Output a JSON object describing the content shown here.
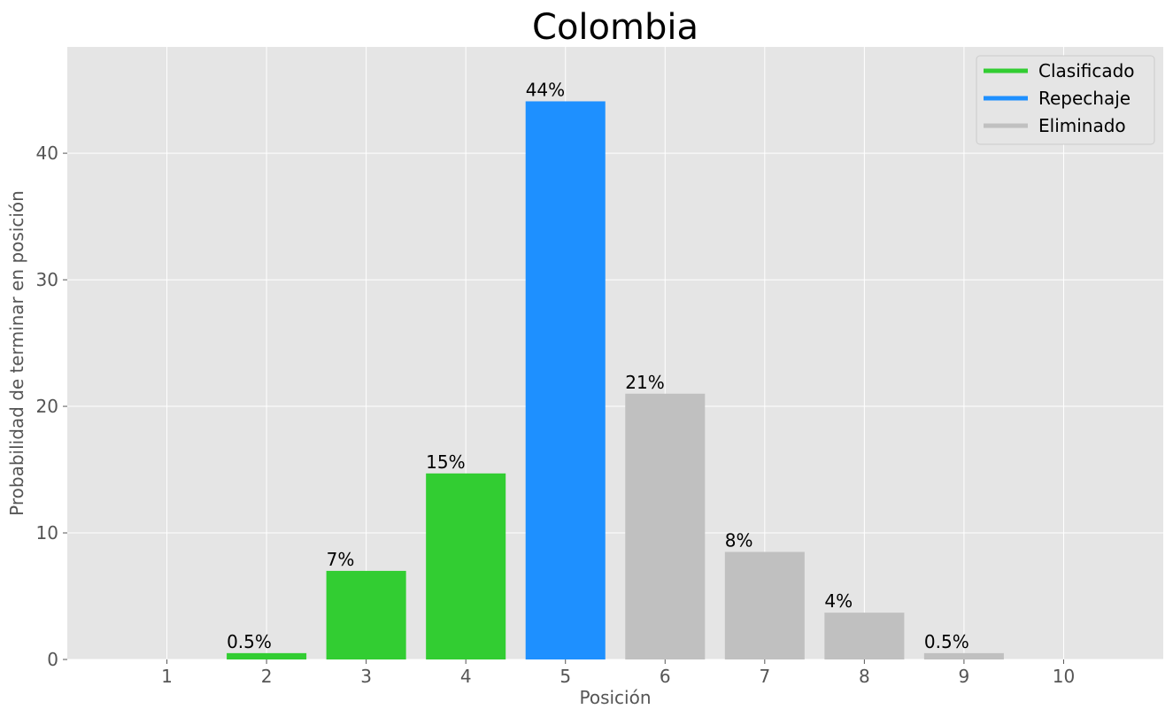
{
  "chart_data": {
    "type": "bar",
    "title": "Colombia",
    "xlabel": "Posición",
    "ylabel": "Probabilidad de terminar en posición",
    "categories": [
      "1",
      "2",
      "3",
      "4",
      "5",
      "6",
      "7",
      "8",
      "9",
      "10"
    ],
    "values": [
      0,
      0.5,
      7.0,
      14.7,
      44.1,
      21.0,
      8.5,
      3.7,
      0.5,
      0
    ],
    "bar_labels": [
      "",
      "0.5%",
      "7%",
      "15%",
      "44%",
      "21%",
      "8%",
      "4%",
      "0.5%",
      ""
    ],
    "bar_classes": [
      "Clasificado",
      "Clasificado",
      "Clasificado",
      "Clasificado",
      "Repechaje",
      "Eliminado",
      "Eliminado",
      "Eliminado",
      "Eliminado",
      "Eliminado"
    ],
    "yticks": [
      0,
      10,
      20,
      30,
      40
    ],
    "ylim": [
      0,
      48.4
    ],
    "xlim": [
      0.0,
      11.0
    ],
    "grid": true,
    "legend_position": "top-right",
    "legend": [
      {
        "label": "Clasificado",
        "color": "#32cd32"
      },
      {
        "label": "Repechaje",
        "color": "#1e90ff"
      },
      {
        "label": "Eliminado",
        "color": "#c0c0c0"
      }
    ],
    "colors": {
      "Clasificado": "#32cd32",
      "Repechaje": "#1e90ff",
      "Eliminado": "#c0c0c0",
      "plot_background": "#e5e5e5",
      "grid": "#ffffff"
    }
  }
}
